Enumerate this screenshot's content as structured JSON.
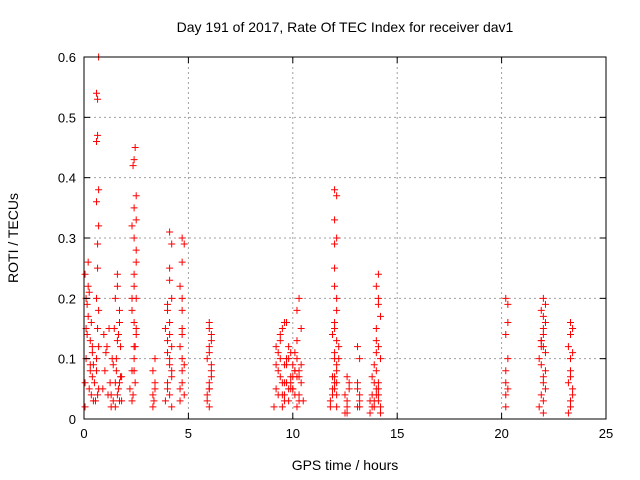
{
  "chart_data": {
    "type": "scatter",
    "title": "Day 191 of 2017, Rate Of TEC Index for receiver dav1",
    "xlabel": "GPS time / hours",
    "ylabel": "ROTI / TECUs",
    "xlim": [
      0,
      25
    ],
    "ylim": [
      0,
      0.6
    ],
    "xticks": [
      0,
      5,
      10,
      15,
      20,
      25
    ],
    "xtick_labels": [
      "0",
      "5",
      "10",
      "15",
      "20",
      "25"
    ],
    "yticks": [
      0,
      0.1,
      0.2,
      0.3,
      0.4,
      0.5,
      0.6
    ],
    "ytick_labels": [
      "0",
      "0.1",
      "0.2",
      "0.3",
      "0.4",
      "0.5",
      "0.6"
    ],
    "grid": true,
    "legend": "none",
    "marker": "+",
    "color": "#ff0000",
    "series": [
      {
        "x": [
          0.05,
          0.05,
          0.1,
          0.1,
          0.15,
          0.2,
          0.2,
          0.25,
          0.3,
          0.3,
          0.35,
          0.4,
          0.4,
          0.45,
          0.5,
          0.1,
          0.2,
          0.3,
          0.4,
          0.05,
          0.15,
          0.25,
          0.35,
          0.45,
          0.55,
          0.6,
          0.6,
          0.65,
          0.65,
          0.7,
          0.7,
          0.6,
          0.65,
          0.7,
          0.6,
          0.65,
          0.7,
          0.6,
          0.7,
          0.65,
          0.6,
          0.7,
          0.65,
          0.9,
          1.0,
          1.1,
          1.2,
          1.3,
          1.4,
          1.5,
          1.6,
          1.7,
          1.8,
          0.95,
          1.05,
          1.15,
          1.25,
          1.35,
          1.45,
          1.55,
          1.65,
          1.75,
          1.3,
          1.4,
          1.5,
          1.6,
          1.7,
          1.8,
          1.5,
          1.6,
          1.7,
          1.55,
          1.65,
          1.75,
          1.6,
          1.7,
          2.2,
          2.3,
          2.4,
          2.5,
          2.3,
          2.4,
          2.5,
          2.3,
          2.4,
          2.5,
          2.35,
          2.45,
          2.4,
          2.5,
          2.4,
          2.3,
          2.5,
          2.4,
          2.45,
          2.35,
          2.4,
          2.5,
          2.45,
          2.4,
          2.3,
          2.5,
          2.4,
          3.3,
          3.4,
          3.3,
          3.4,
          3.3,
          3.4,
          3.35,
          3.9,
          4.0,
          4.1,
          4.2,
          3.9,
          4.0,
          4.1,
          4.2,
          4.0,
          4.1,
          4.2,
          4.0,
          4.1,
          4.2,
          4.1,
          4.2,
          4.1,
          4.1,
          4.2,
          4.0,
          4.1,
          4.0,
          4.6,
          4.7,
          4.8,
          4.6,
          4.7,
          4.8,
          4.7,
          4.6,
          4.7,
          4.8,
          4.7,
          4.7,
          4.7,
          4.7,
          4.6,
          4.7,
          5.9,
          6.0,
          6.1,
          5.9,
          6.0,
          6.1,
          5.9,
          6.0,
          6.1,
          6.0,
          6.1,
          6.0,
          6.0,
          6.1,
          6.0,
          6.0,
          9.1,
          9.2,
          9.3,
          9.4,
          9.5,
          9.6,
          9.7,
          9.8,
          9.9,
          10.0,
          10.1,
          10.2,
          10.3,
          10.4,
          10.5,
          9.2,
          9.4,
          9.6,
          9.8,
          10.0,
          10.2,
          10.4,
          9.3,
          9.5,
          9.7,
          9.9,
          10.1,
          10.3,
          9.4,
          9.6,
          9.8,
          10.0,
          10.2,
          9.5,
          9.7,
          9.9,
          10.1,
          10.3,
          9.6,
          9.8,
          10.0,
          9.7,
          9.9,
          10.1,
          10.3,
          10.2,
          10.3,
          10.4,
          10.2,
          9.2,
          9.3,
          9.4,
          9.5,
          9.6,
          11.8,
          11.9,
          12.0,
          12.1,
          12.2,
          11.8,
          11.9,
          12.0,
          12.1,
          12.2,
          11.9,
          12.0,
          12.1,
          12.0,
          12.1,
          12.0,
          12.0,
          12.1,
          12.0,
          12.1,
          12.0,
          12.1,
          12.0,
          12.1,
          12.0,
          12.0,
          11.9,
          12.1,
          12.0,
          12.1,
          12.5,
          12.6,
          12.7,
          12.5,
          12.6,
          12.7,
          12.6,
          12.6,
          13.1,
          13.2,
          13.1,
          13.2,
          13.1,
          13.2,
          13.1,
          13.2,
          13.7,
          13.8,
          13.9,
          14.0,
          14.1,
          14.2,
          13.7,
          13.8,
          13.9,
          14.0,
          14.1,
          14.2,
          13.8,
          13.9,
          14.0,
          14.1,
          14.2,
          13.9,
          14.0,
          14.1,
          14.0,
          14.1,
          14.0,
          14.0,
          14.1,
          14.1,
          14.2,
          14.1,
          20.2,
          20.3,
          20.2,
          20.3,
          20.2,
          20.3,
          20.2,
          20.3,
          20.2,
          20.2,
          21.8,
          21.9,
          22.0,
          22.1,
          21.8,
          21.9,
          22.0,
          22.1,
          21.9,
          22.0,
          22.1,
          21.9,
          22.0,
          22.1,
          22.0,
          21.9,
          22.0,
          22.1,
          22.0,
          22.0,
          21.9,
          22.0,
          23.2,
          23.3,
          23.4,
          23.2,
          23.3,
          23.4,
          23.3,
          23.2,
          23.3,
          23.4,
          23.3,
          23.3,
          23.3,
          23.4
        ],
        "y": [
          0.02,
          0.06,
          0.1,
          0.15,
          0.19,
          0.22,
          0.26,
          0.05,
          0.08,
          0.13,
          0.04,
          0.07,
          0.11,
          0.03,
          0.06,
          0.2,
          0.17,
          0.09,
          0.12,
          0.24,
          0.14,
          0.21,
          0.16,
          0.09,
          0.03,
          0.46,
          0.54,
          0.47,
          0.53,
          0.6,
          0.38,
          0.36,
          0.29,
          0.32,
          0.2,
          0.15,
          0.12,
          0.08,
          0.05,
          0.25,
          0.1,
          0.18,
          0.04,
          0.05,
          0.08,
          0.12,
          0.15,
          0.04,
          0.09,
          0.06,
          0.13,
          0.03,
          0.07,
          0.14,
          0.11,
          0.04,
          0.06,
          0.1,
          0.15,
          0.08,
          0.05,
          0.12,
          0.02,
          0.03,
          0.02,
          0.04,
          0.06,
          0.03,
          0.2,
          0.24,
          0.18,
          0.1,
          0.14,
          0.07,
          0.22,
          0.16,
          0.05,
          0.08,
          0.12,
          0.15,
          0.2,
          0.24,
          0.28,
          0.32,
          0.35,
          0.37,
          0.42,
          0.45,
          0.3,
          0.26,
          0.22,
          0.18,
          0.14,
          0.1,
          0.06,
          0.04,
          0.16,
          0.2,
          0.12,
          0.08,
          0.03,
          0.33,
          0.43,
          0.02,
          0.05,
          0.08,
          0.1,
          0.04,
          0.06,
          0.03,
          0.03,
          0.06,
          0.09,
          0.12,
          0.15,
          0.18,
          0.04,
          0.08,
          0.11,
          0.14,
          0.02,
          0.05,
          0.16,
          0.2,
          0.31,
          0.29,
          0.25,
          0.23,
          0.07,
          0.13,
          0.1,
          0.19,
          0.03,
          0.06,
          0.09,
          0.12,
          0.15,
          0.04,
          0.18,
          0.22,
          0.26,
          0.29,
          0.2,
          0.08,
          0.1,
          0.14,
          0.05,
          0.3,
          0.03,
          0.05,
          0.08,
          0.1,
          0.12,
          0.14,
          0.04,
          0.06,
          0.09,
          0.16,
          0.07,
          0.02,
          0.11,
          0.13,
          0.05,
          0.15,
          0.02,
          0.05,
          0.08,
          0.1,
          0.04,
          0.06,
          0.09,
          0.03,
          0.07,
          0.05,
          0.08,
          0.1,
          0.04,
          0.06,
          0.03,
          0.12,
          0.14,
          0.16,
          0.1,
          0.05,
          0.07,
          0.09,
          0.04,
          0.02,
          0.06,
          0.11,
          0.08,
          0.03,
          0.13,
          0.09,
          0.05,
          0.07,
          0.02,
          0.15,
          0.1,
          0.06,
          0.04,
          0.08,
          0.03,
          0.12,
          0.09,
          0.16,
          0.05,
          0.11,
          0.07,
          0.18,
          0.2,
          0.15,
          0.13,
          0.09,
          0.11,
          0.07,
          0.06,
          0.04,
          0.02,
          0.04,
          0.06,
          0.08,
          0.1,
          0.03,
          0.05,
          0.07,
          0.09,
          0.12,
          0.14,
          0.16,
          0.2,
          0.25,
          0.3,
          0.33,
          0.38,
          0.37,
          0.29,
          0.18,
          0.11,
          0.13,
          0.05,
          0.02,
          0.22,
          0.15,
          0.07,
          0.04,
          0.1,
          0.06,
          0.01,
          0.03,
          0.05,
          0.04,
          0.02,
          0.06,
          0.07,
          0.01,
          0.02,
          0.04,
          0.06,
          0.03,
          0.05,
          0.1,
          0.12,
          0.02,
          0.01,
          0.02,
          0.03,
          0.04,
          0.05,
          0.02,
          0.03,
          0.04,
          0.06,
          0.05,
          0.03,
          0.01,
          0.07,
          0.02,
          0.13,
          0.2,
          0.17,
          0.09,
          0.22,
          0.24,
          0.11,
          0.19,
          0.15,
          0.08,
          0.12,
          0.06,
          0.1,
          0.04,
          0.02,
          0.05,
          0.08,
          0.1,
          0.14,
          0.16,
          0.2,
          0.19,
          0.04,
          0.06,
          0.02,
          0.04,
          0.06,
          0.08,
          0.1,
          0.12,
          0.14,
          0.16,
          0.18,
          0.2,
          0.11,
          0.13,
          0.15,
          0.05,
          0.07,
          0.09,
          0.17,
          0.19,
          0.03,
          0.01,
          0.13,
          0.12,
          0.01,
          0.02,
          0.04,
          0.06,
          0.03,
          0.05,
          0.08,
          0.12,
          0.14,
          0.15,
          0.1,
          0.07,
          0.16,
          0.11
        ]
      }
    ]
  }
}
